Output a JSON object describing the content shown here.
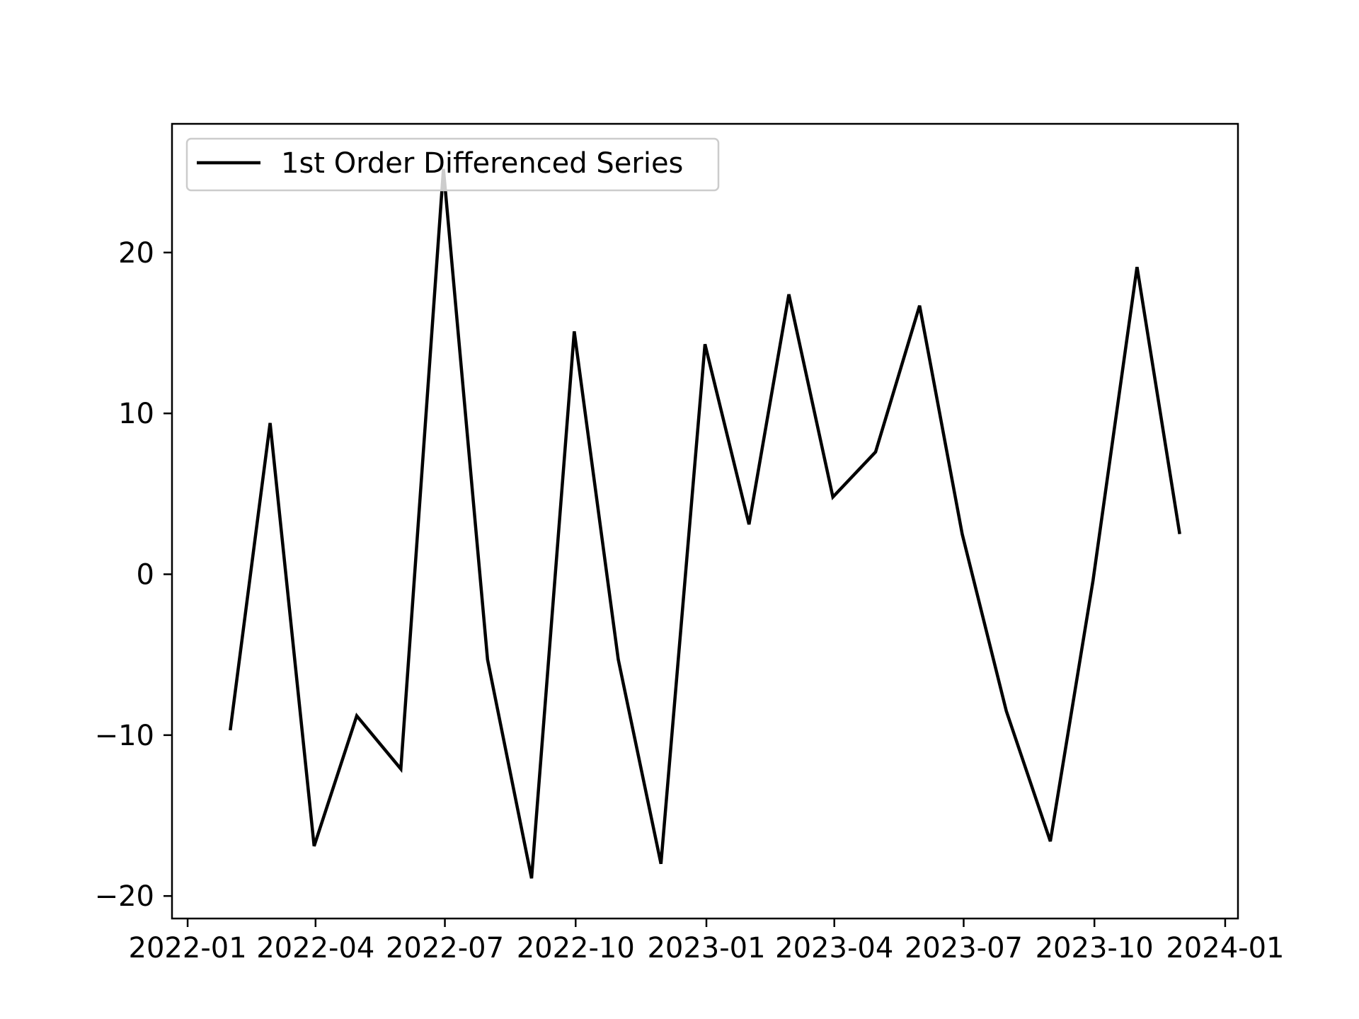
{
  "chart_data": {
    "type": "line",
    "title": "",
    "xlabel": "",
    "ylabel": "",
    "x": [
      "2022-01-31",
      "2022-02-28",
      "2022-03-31",
      "2022-04-30",
      "2022-05-31",
      "2022-06-30",
      "2022-07-31",
      "2022-08-31",
      "2022-09-30",
      "2022-10-31",
      "2022-11-30",
      "2022-12-31",
      "2023-01-31",
      "2023-02-28",
      "2023-03-31",
      "2023-04-30",
      "2023-05-31",
      "2023-06-30",
      "2023-07-31",
      "2023-08-31",
      "2023-09-30",
      "2023-10-31",
      "2023-11-30"
    ],
    "series": [
      {
        "name": "1st Order Differenced Series",
        "color": "#000000",
        "values": [
          -9.7,
          9.4,
          -16.9,
          -8.8,
          -12.1,
          25.2,
          -5.3,
          -18.9,
          15.1,
          -5.3,
          -18.0,
          14.3,
          3.1,
          17.4,
          4.8,
          7.6,
          16.7,
          2.5,
          -8.5,
          -16.6,
          -0.4,
          19.1,
          2.5
        ]
      }
    ],
    "xlim": [
      "2021-12-21",
      "2024-01-10"
    ],
    "ylim": [
      -21.4,
      28.0
    ],
    "xticks": [
      "2022-01",
      "2022-04",
      "2022-07",
      "2022-10",
      "2023-01",
      "2023-04",
      "2023-07",
      "2023-10",
      "2024-01"
    ],
    "yticks": [
      -20,
      -10,
      0,
      10,
      20
    ],
    "ytick_labels": [
      "−20",
      "−10",
      "0",
      "10",
      "20"
    ],
    "grid": false,
    "legend_position": "upper left"
  }
}
